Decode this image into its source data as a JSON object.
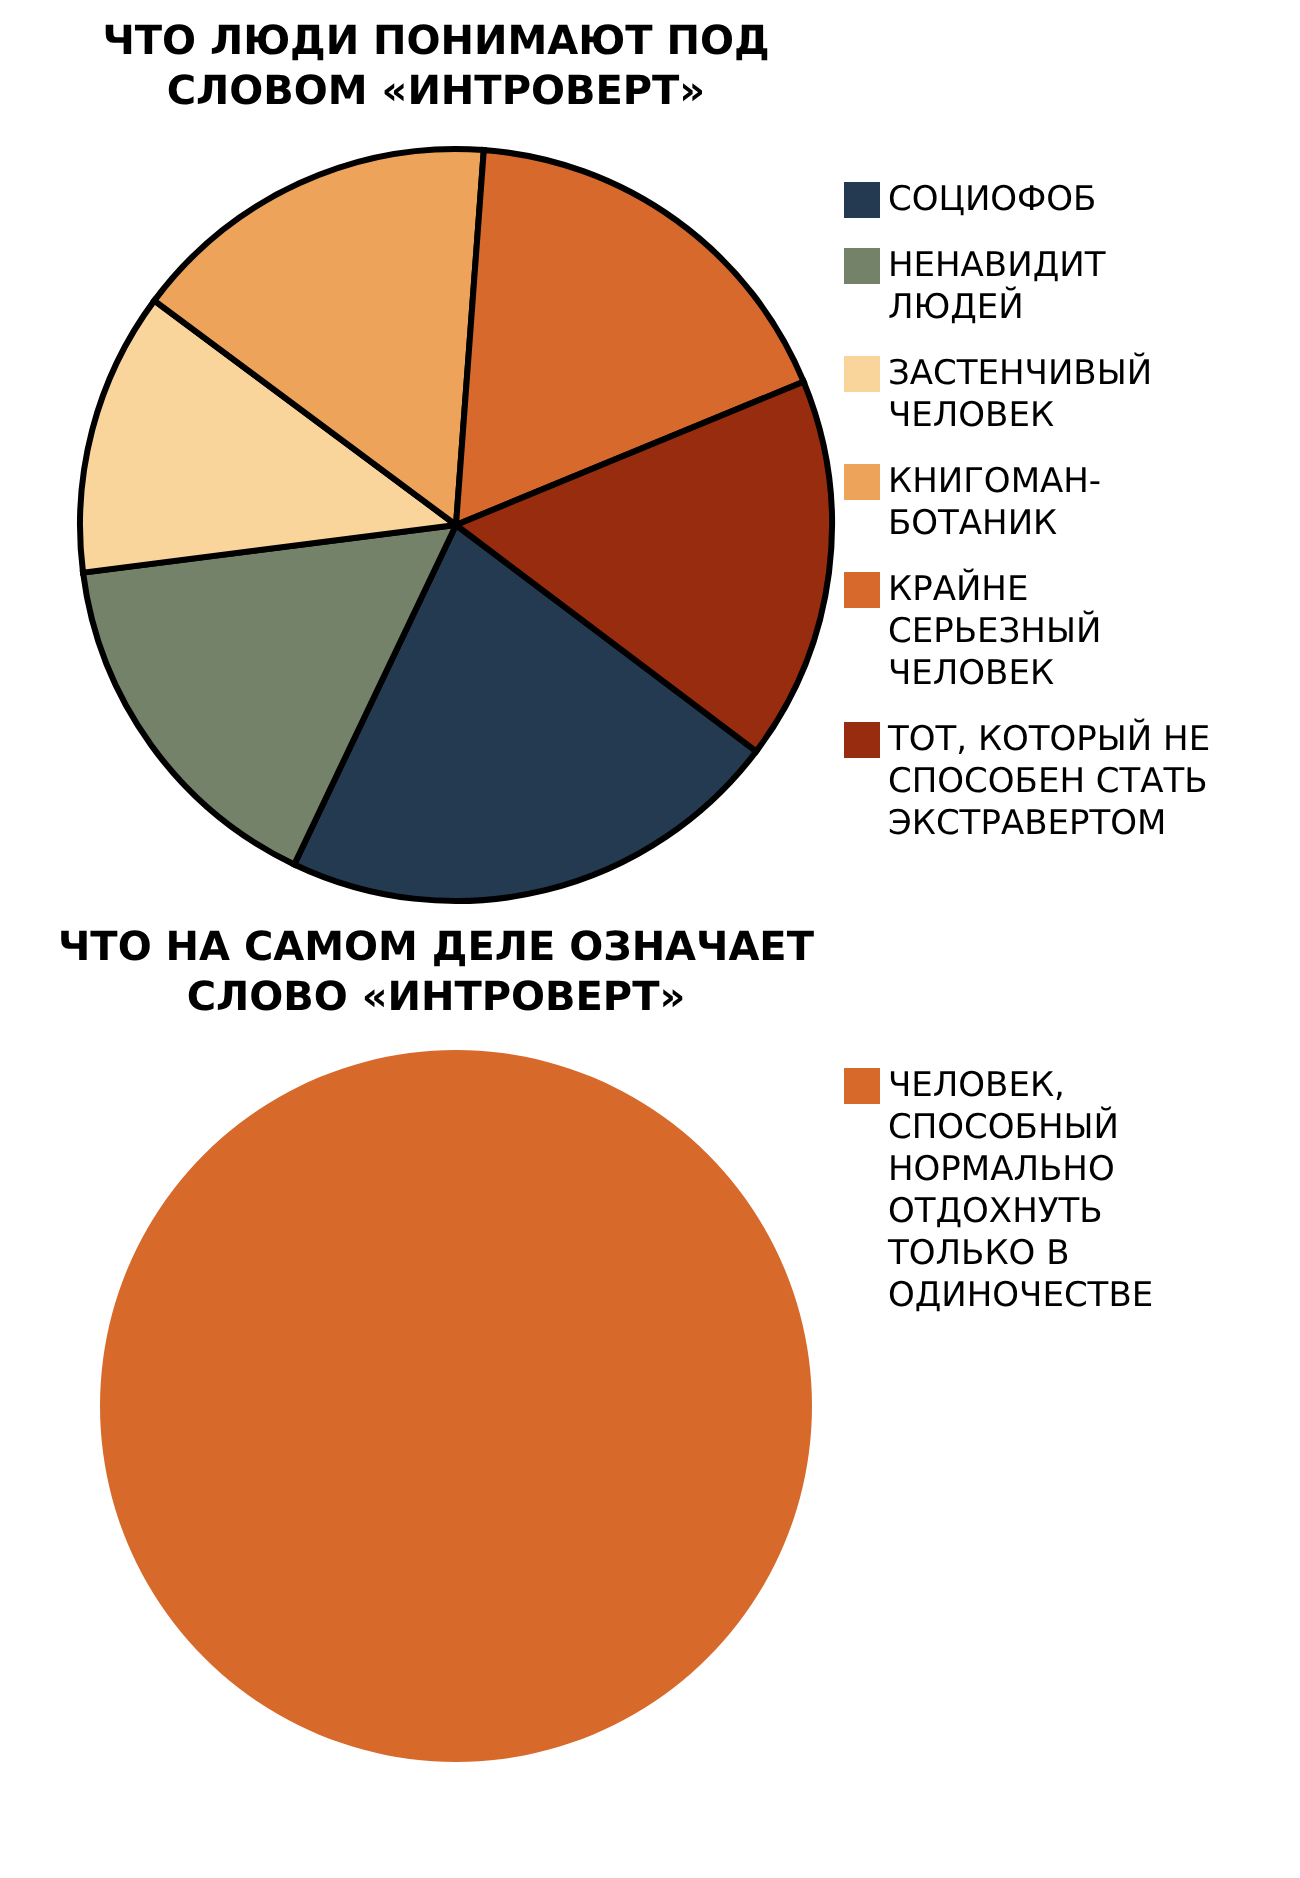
{
  "chart_data": [
    {
      "type": "pie",
      "title": "ЧТО ЛЮДИ ПОНИМАЮТ ПОД СЛОВОМ «ИНТРОВЕРТ»",
      "categories": [
        "СОЦИОФОБ",
        "НЕНАВИДИТ ЛЮДЕЙ",
        "ЗАСТЕНЧИВЫЙ ЧЕЛОВЕК",
        "КНИГОМАН-БОТАНИК",
        "КРАЙНЕ СЕРЬЕЗНЫЙ ЧЕЛОВЕК",
        "ТОТ, КОТОРЫЙ НЕ СПОСОБЕН СТАТЬ ЭКСТРАВЕРТОМ"
      ],
      "values": [
        21.8,
        15.9,
        12.2,
        16.0,
        17.6,
        16.5
      ],
      "colors": [
        "#233a50",
        "#75826a",
        "#f9d49b",
        "#eda35a",
        "#d6692b",
        "#982c0f"
      ],
      "legend": "top right"
    },
    {
      "type": "pie",
      "title": "ЧТО НА САМОМ ДЕЛЕ ОЗНАЧАЕТ СЛОВО «ИНТРОВЕРТ»",
      "categories": [
        "ЧЕЛОВЕК, СПОСОБНЫЙ НОРМАЛЬНО ОТДОХНУТЬ ТОЛЬКО В ОДИНОЧЕСТВЕ"
      ],
      "values": [
        100
      ],
      "colors": [
        "#d7692b"
      ],
      "legend": "top right"
    }
  ]
}
